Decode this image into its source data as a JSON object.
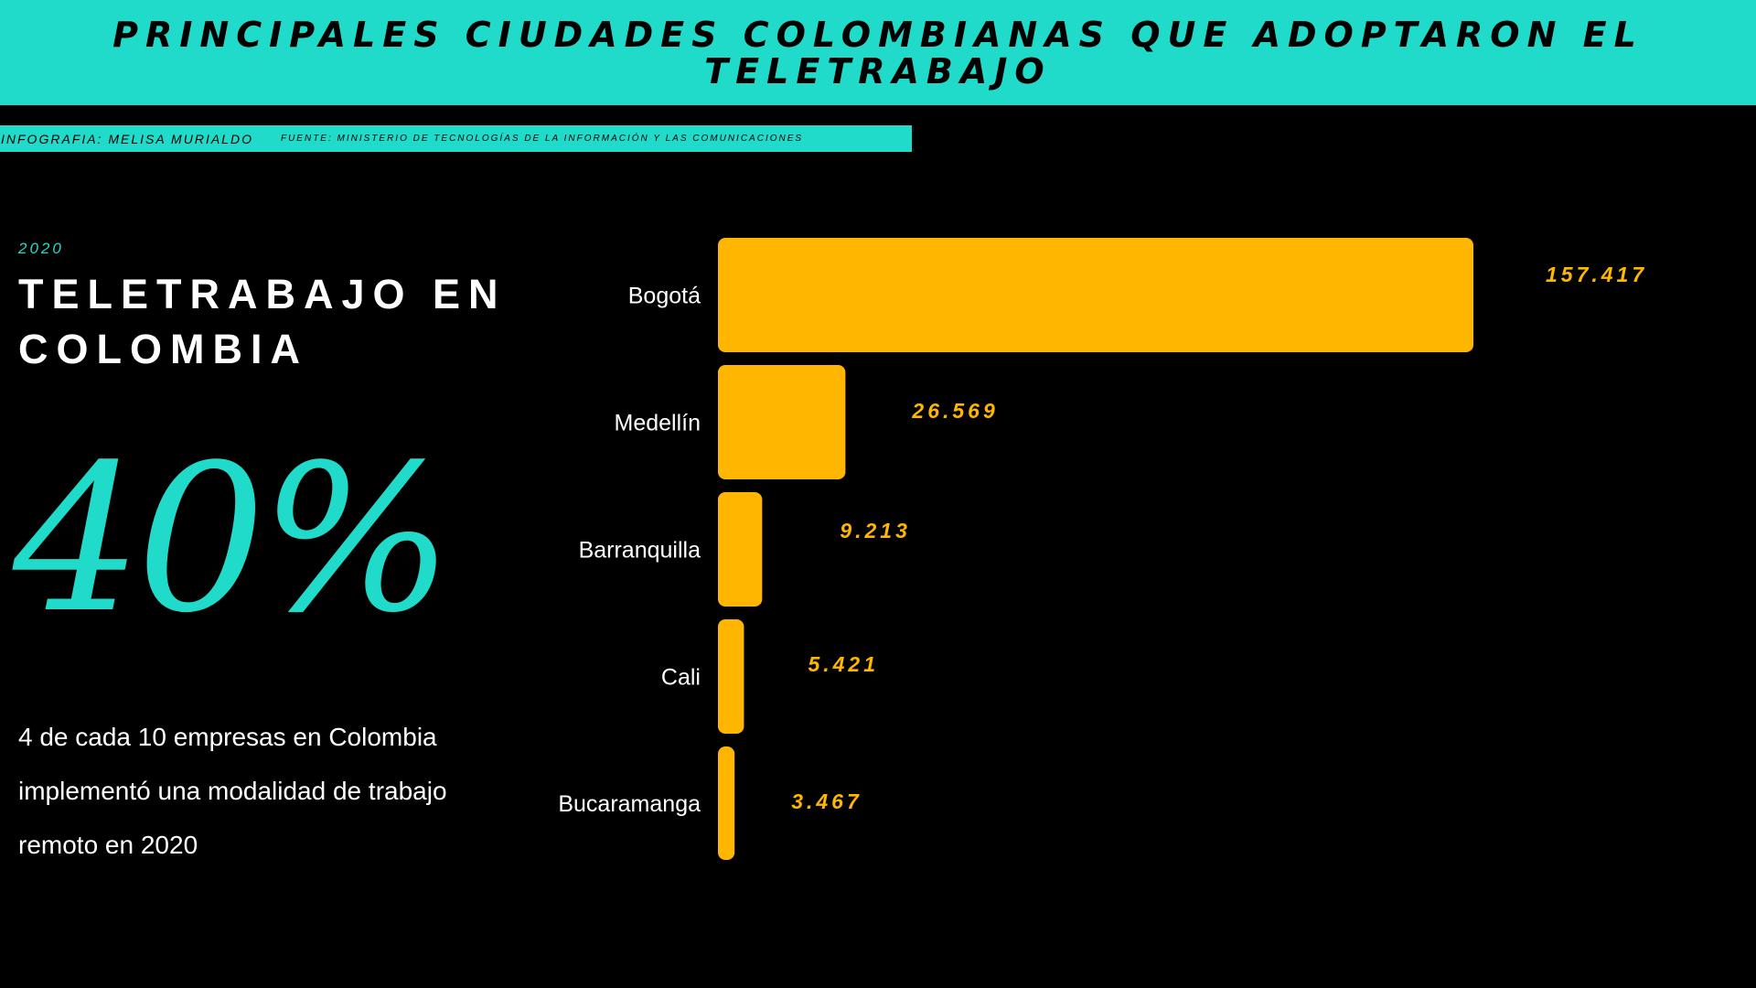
{
  "banner": {
    "title": "PRINCIPALES CIUDADES COLOMBIANAS QUE ADOPTARON EL TELETRABAJO"
  },
  "credits": {
    "author": "INFOGRAFIA: MELISA MURIALDO",
    "source": "FUENTE: MINISTERIO DE TECNOLOGÍAS DE LA INFORMACIÓN Y LAS COMUNICACIONES"
  },
  "sidebar": {
    "year": "2020",
    "headline": "TELETRABAJO EN COLOMBIA",
    "big_stat": "40%",
    "description": "4 de cada 10 empresas en Colombia implementó una modalidad de trabajo remoto en 2020"
  },
  "colors": {
    "accent": "#20dbc9",
    "bar": "#ffb600",
    "background": "#000000",
    "text": "#ffffff"
  },
  "chart_data": {
    "type": "bar",
    "orientation": "horizontal",
    "categories": [
      "Bogotá",
      "Medellín",
      "Barranquilla",
      "Cali",
      "Bucaramanga"
    ],
    "values": [
      157417,
      26569,
      9213,
      5421,
      3467
    ],
    "value_labels": [
      "157.417",
      "26.569",
      "9.213",
      "5.421",
      "3.467"
    ],
    "xlim": [
      0,
      157417
    ],
    "grid": false,
    "legend": "none"
  }
}
